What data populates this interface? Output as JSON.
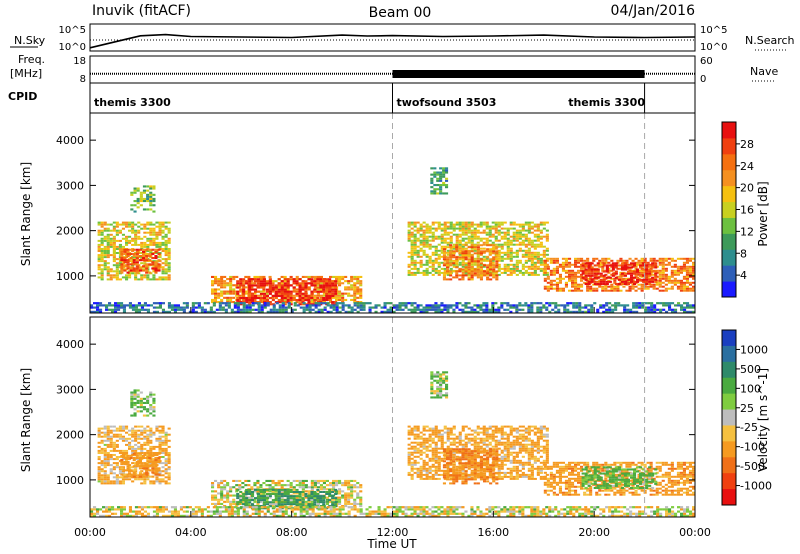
{
  "header": {
    "station": "Inuvik (fitACF)",
    "beam": "Beam 00",
    "date": "04/Jan/2016"
  },
  "summary": {
    "left_labels": [
      "N.Sky",
      "Freq.",
      "[MHz]",
      "CPID"
    ],
    "right_labels": [
      "N.Search",
      "Nave"
    ],
    "nsky_ticks": [
      "10^5",
      "10^0"
    ],
    "nsearch_ticks": [
      "10^5",
      "10^0"
    ],
    "freq_ticks": [
      "18",
      "8"
    ],
    "nave_ticks": [
      "60",
      "0"
    ],
    "cpid_segments": [
      {
        "label": "themis 3300",
        "start_hour": 0,
        "end_hour": 12
      },
      {
        "label": "twofsound 3503",
        "start_hour": 12,
        "end_hour": 22
      },
      {
        "label": "themis 3300",
        "start_hour": 22,
        "end_hour": 24
      }
    ]
  },
  "axes": {
    "xlabel": "Time UT",
    "x_ticks": [
      "00:00",
      "04:00",
      "08:00",
      "12:00",
      "16:00",
      "20:00",
      "00:00"
    ],
    "ylabel": "Slant Range [km]",
    "y_ticks": [
      "1000",
      "2000",
      "3000",
      "4000"
    ]
  },
  "colorbars": {
    "power": {
      "label": "Power [dB]",
      "ticks": [
        "4",
        "8",
        "12",
        "16",
        "20",
        "24",
        "28"
      ],
      "colors": [
        "#1a1aff",
        "#2e5fb8",
        "#2e8e8e",
        "#3d9a5a",
        "#6cc040",
        "#c8d020",
        "#f5c010",
        "#f59020",
        "#f57010",
        "#f04010",
        "#e81010"
      ]
    },
    "velocity": {
      "label": "Velocity [m s^-1]",
      "ticks": [
        "1000",
        "500",
        "100",
        "25",
        "-25",
        "-100",
        "-500",
        "-1000"
      ],
      "colors": [
        "#1a3fc0",
        "#2a6fa0",
        "#2e8a6a",
        "#4aaa40",
        "#7fcc40",
        "#bdbdbd",
        "#f5c040",
        "#f59a20",
        "#f07018",
        "#f04010",
        "#e81010"
      ]
    }
  },
  "chart_data": [
    {
      "type": "line",
      "title": "N.Sky / N.Search",
      "x": [
        0,
        2,
        3,
        4,
        6,
        8,
        10,
        11,
        12,
        14,
        16,
        18,
        20,
        22,
        24
      ],
      "series": [
        {
          "values": [
            5,
            55,
            60,
            52,
            50,
            48,
            58,
            54,
            56,
            52,
            54,
            58,
            50,
            48,
            50
          ]
        }
      ]
    },
    {
      "type": "line",
      "title": "Freq. [MHz]",
      "x": [
        0,
        12,
        22,
        24
      ],
      "series": [
        {
          "values": [
            11,
            11,
            11,
            11
          ]
        }
      ]
    },
    {
      "type": "heatmap",
      "title": "Power [dB]",
      "xlabel": "Time UT",
      "ylabel": "Slant Range [km]",
      "xlim": [
        0,
        24
      ],
      "ylim": [
        180,
        4600
      ],
      "zlim": [
        0,
        30
      ],
      "blobs": [
        {
          "t0": 0.3,
          "t1": 3.2,
          "r0": 900,
          "r1": 2200,
          "z": 16
        },
        {
          "t0": 1.2,
          "t1": 2.8,
          "r0": 1050,
          "r1": 1600,
          "z": 24
        },
        {
          "t0": 1.6,
          "t1": 2.6,
          "r0": 2400,
          "r1": 3000,
          "z": 12
        },
        {
          "t0": 4.8,
          "t1": 10.8,
          "r0": 400,
          "r1": 1000,
          "z": 20
        },
        {
          "t0": 5.8,
          "t1": 9.8,
          "r0": 350,
          "r1": 950,
          "z": 28
        },
        {
          "t0": 12.6,
          "t1": 18.2,
          "r0": 1000,
          "r1": 2200,
          "z": 16
        },
        {
          "t0": 14.0,
          "t1": 16.2,
          "r0": 900,
          "r1": 1700,
          "z": 22
        },
        {
          "t0": 13.5,
          "t1": 14.2,
          "r0": 2800,
          "r1": 3400,
          "z": 10
        },
        {
          "t0": 18.0,
          "t1": 24.0,
          "r0": 650,
          "r1": 1400,
          "z": 22
        },
        {
          "t0": 19.5,
          "t1": 22.5,
          "r0": 800,
          "r1": 1300,
          "z": 28
        },
        {
          "t0": 0.0,
          "t1": 24.0,
          "r0": 180,
          "r1": 420,
          "z": 6
        }
      ]
    },
    {
      "type": "heatmap",
      "title": "Velocity",
      "xlabel": "Time UT",
      "ylabel": "Slant Range [km]",
      "xlim": [
        0,
        24
      ],
      "ylim": [
        180,
        4600
      ],
      "zlim": [
        -1000,
        1000
      ],
      "blobs": [
        {
          "t0": 0.3,
          "t1": 3.2,
          "r0": 900,
          "r1": 2200,
          "z": -120
        },
        {
          "t0": 1.2,
          "t1": 2.8,
          "r0": 1050,
          "r1": 1600,
          "z": -200
        },
        {
          "t0": 1.6,
          "t1": 2.6,
          "r0": 2400,
          "r1": 3000,
          "z": 100
        },
        {
          "t0": 4.8,
          "t1": 10.8,
          "r0": 400,
          "r1": 1000,
          "z": 0
        },
        {
          "t0": 5.8,
          "t1": 9.8,
          "r0": 350,
          "r1": 800,
          "z": 300
        },
        {
          "t0": 12.6,
          "t1": 18.2,
          "r0": 1000,
          "r1": 2200,
          "z": -150
        },
        {
          "t0": 14.0,
          "t1": 16.2,
          "r0": 900,
          "r1": 1700,
          "z": -300
        },
        {
          "t0": 13.5,
          "t1": 14.2,
          "r0": 2800,
          "r1": 3400,
          "z": 80
        },
        {
          "t0": 18.0,
          "t1": 24.0,
          "r0": 650,
          "r1": 1400,
          "z": -200
        },
        {
          "t0": 19.5,
          "t1": 22.5,
          "r0": 800,
          "r1": 1300,
          "z": 150
        },
        {
          "t0": 0.0,
          "t1": 24.0,
          "r0": 180,
          "r1": 420,
          "z": -25
        }
      ]
    }
  ]
}
